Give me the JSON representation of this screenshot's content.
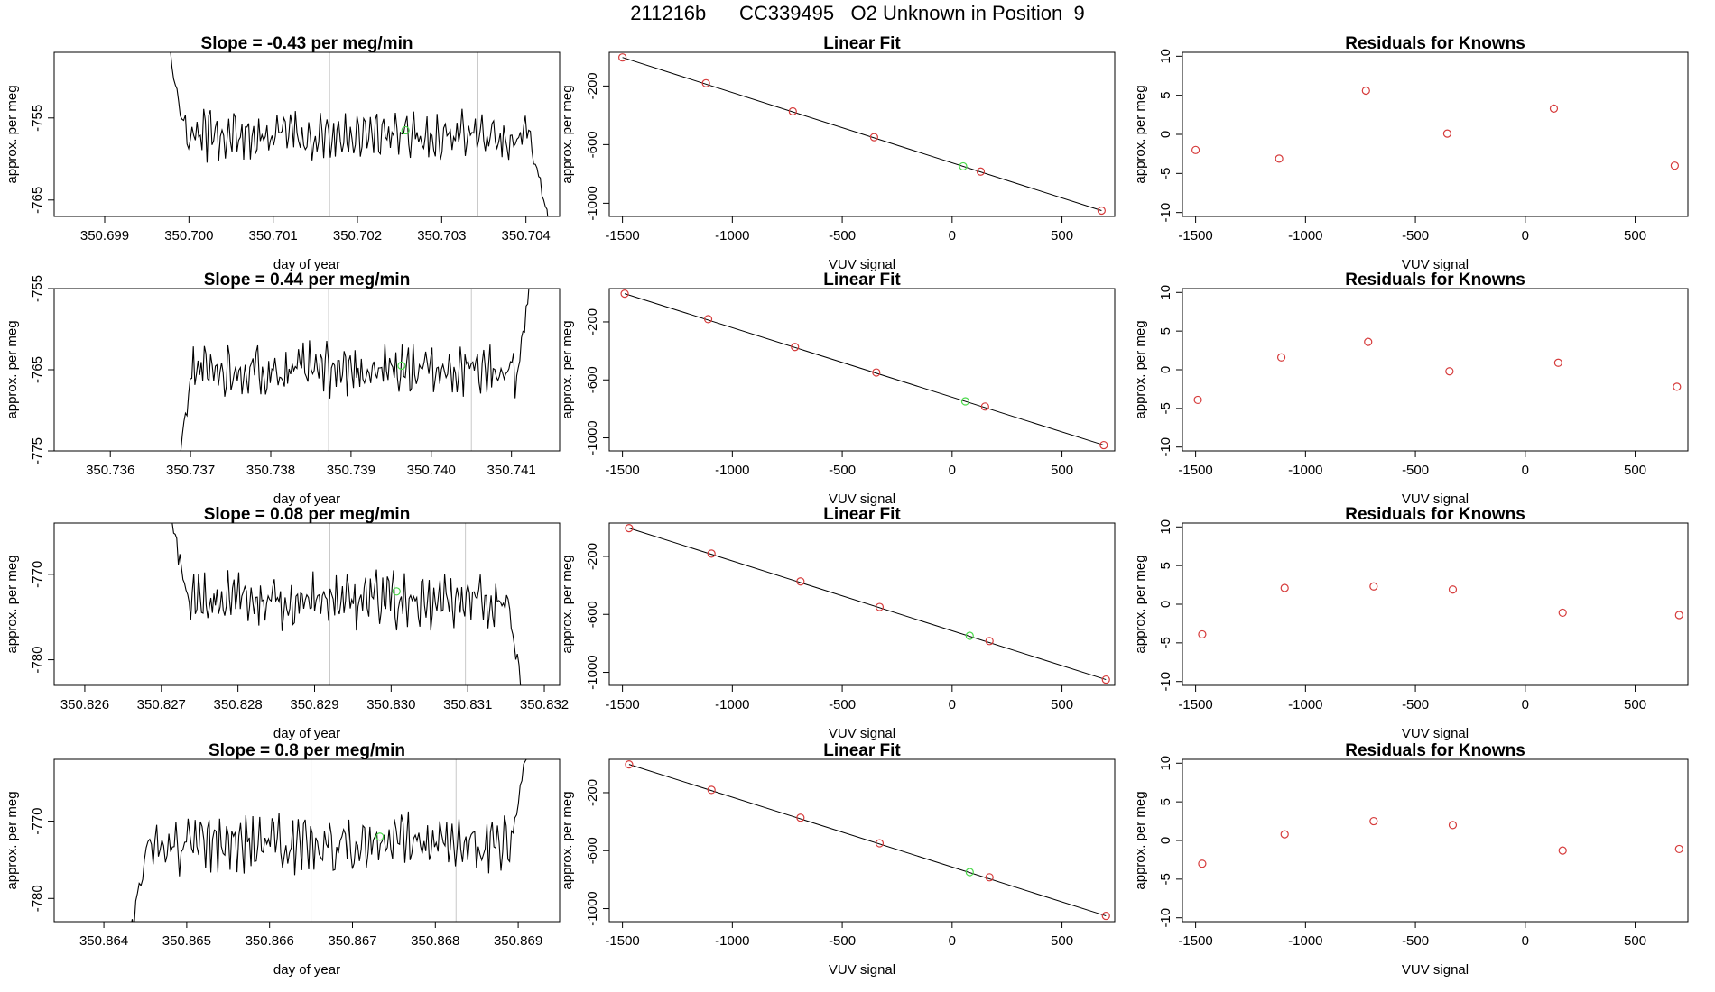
{
  "page_title": "211216b      CC339495   O2 Unknown in Position  9",
  "colors": {
    "trace": "#000000",
    "marker_red": "#d63b3b",
    "marker_green": "#4ad84a",
    "guide": "#c8c8c8"
  },
  "chart_data": [
    {
      "type": "line",
      "title": "Slope =  -0.43  per meg/min",
      "xlabel": "day of year",
      "ylabel": "approx. per meg",
      "xlim": [
        350.6984,
        350.7044
      ],
      "ylim": [
        -767,
        -747
      ],
      "xticks": [
        "350.699",
        "350.700",
        "350.701",
        "350.702",
        "350.703",
        "350.704"
      ],
      "yticks": [
        "-765",
        "-755"
      ],
      "yticks_value": [
        -765,
        -755
      ],
      "vlines": [
        350.70167,
        350.70343
      ],
      "green_point": [
        350.70257,
        -756.5
      ],
      "series_x": [
        350.69972,
        350.70427
      ],
      "base": -757,
      "start": -744,
      "end": -768,
      "noise": 2.5,
      "seed": 3
    },
    {
      "type": "scatter",
      "title": "Linear Fit",
      "xlabel": "VUV signal",
      "ylabel": "approx. per meg",
      "xlim": [
        -1560,
        740
      ],
      "ylim": [
        -1090,
        30
      ],
      "xticks": [
        "-1500",
        "-1000",
        "-500",
        "0",
        "500"
      ],
      "yticks": [
        "-1000",
        "-600",
        "-200"
      ],
      "points": [
        [
          -1500,
          -5
        ],
        [
          -1120,
          -181
        ],
        [
          -725,
          -373
        ],
        [
          -355,
          -549
        ],
        [
          130,
          -784
        ],
        [
          680,
          -1050
        ]
      ],
      "green_point": [
        50,
        -748
      ],
      "fit_line": [
        [
          -1500,
          -5
        ],
        [
          680,
          -1050
        ]
      ]
    },
    {
      "type": "scatter",
      "title": "Residuals for Knowns",
      "xlabel": "VUV signal",
      "ylabel": "approx. per meg",
      "xlim": [
        -1560,
        740
      ],
      "ylim": [
        -10.5,
        10.5
      ],
      "xticks": [
        "-1500",
        "-1000",
        "-500",
        "0",
        "500"
      ],
      "yticks": [
        "-10",
        "-5",
        "0",
        "5",
        "10"
      ],
      "points": [
        [
          -1500,
          -2
        ],
        [
          -1120,
          -3.1
        ],
        [
          -725,
          5.6
        ],
        [
          -355,
          0.1
        ],
        [
          130,
          3.3
        ],
        [
          680,
          -4
        ]
      ]
    },
    {
      "type": "line",
      "title": "Slope =  0.44  per meg/min",
      "xlabel": "day of year",
      "ylabel": "approx. per meg",
      "xlim": [
        350.7353,
        350.7416
      ],
      "ylim": [
        -775,
        -755
      ],
      "xticks": [
        "350.736",
        "350.737",
        "350.738",
        "350.739",
        "350.740",
        "350.741"
      ],
      "yticks": [
        "-775",
        "-765",
        "-755"
      ],
      "yticks_value": [
        -775,
        -765,
        -755
      ],
      "vlines": [
        350.73872,
        350.7405
      ],
      "green_point": [
        350.73963,
        -764.5
      ],
      "series_x": [
        350.7368,
        350.7413
      ],
      "base": -765,
      "start": -780,
      "end": -750,
      "noise": 2.6,
      "seed": 11
    },
    {
      "type": "scatter",
      "title": "Linear Fit",
      "xlabel": "VUV signal",
      "ylabel": "approx. per meg",
      "xlim": [
        -1560,
        740
      ],
      "ylim": [
        -1090,
        30
      ],
      "xticks": [
        "-1500",
        "-1000",
        "-500",
        "0",
        "500"
      ],
      "yticks": [
        "-1000",
        "-600",
        "-200"
      ],
      "points": [
        [
          -1490,
          -5
        ],
        [
          -1110,
          -181
        ],
        [
          -715,
          -373
        ],
        [
          -345,
          -549
        ],
        [
          150,
          -784
        ],
        [
          690,
          -1050
        ]
      ],
      "green_point": [
        60,
        -748
      ],
      "fit_line": [
        [
          -1490,
          -5
        ],
        [
          690,
          -1050
        ]
      ]
    },
    {
      "type": "scatter",
      "title": "Residuals for Knowns",
      "xlabel": "VUV signal",
      "ylabel": "approx. per meg",
      "xlim": [
        -1560,
        740
      ],
      "ylim": [
        -10.5,
        10.5
      ],
      "xticks": [
        "-1500",
        "-1000",
        "-500",
        "0",
        "500"
      ],
      "yticks": [
        "-10",
        "-5",
        "0",
        "5",
        "10"
      ],
      "points": [
        [
          -1490,
          -3.9
        ],
        [
          -1110,
          1.6
        ],
        [
          -715,
          3.6
        ],
        [
          -345,
          -0.2
        ],
        [
          150,
          0.9
        ],
        [
          690,
          -2.2
        ]
      ]
    },
    {
      "type": "line",
      "title": "Slope =  0.08  per meg/min",
      "xlabel": "day of year",
      "ylabel": "approx. per meg",
      "xlim": [
        350.8256,
        350.8322
      ],
      "ylim": [
        -783,
        -764
      ],
      "xticks": [
        "350.826",
        "350.827",
        "350.828",
        "350.829",
        "350.830",
        "350.831",
        "350.832"
      ],
      "yticks": [
        "-780",
        "-770"
      ],
      "yticks_value": [
        -780,
        -770
      ],
      "vlines": [
        350.8292,
        350.83097
      ],
      "green_point": [
        350.83007,
        -772
      ],
      "series_x": [
        350.8271,
        350.83175
      ],
      "base": -773,
      "start": -762,
      "end": -786,
      "noise": 2.6,
      "seed": 21
    },
    {
      "type": "scatter",
      "title": "Linear Fit",
      "xlabel": "VUV signal",
      "ylabel": "approx. per meg",
      "xlim": [
        -1560,
        740
      ],
      "ylim": [
        -1090,
        30
      ],
      "xticks": [
        "-1500",
        "-1000",
        "-500",
        "0",
        "500"
      ],
      "yticks": [
        "-1000",
        "-600",
        "-200"
      ],
      "points": [
        [
          -1470,
          -5
        ],
        [
          -1095,
          -181
        ],
        [
          -690,
          -373
        ],
        [
          -330,
          -549
        ],
        [
          170,
          -784
        ],
        [
          700,
          -1050
        ]
      ],
      "green_point": [
        80,
        -748
      ],
      "fit_line": [
        [
          -1470,
          -5
        ],
        [
          700,
          -1050
        ]
      ]
    },
    {
      "type": "scatter",
      "title": "Residuals for Knowns",
      "xlabel": "VUV signal",
      "ylabel": "approx. per meg",
      "xlim": [
        -1560,
        740
      ],
      "ylim": [
        -10.5,
        10.5
      ],
      "xticks": [
        "-1500",
        "-1000",
        "-500",
        "0",
        "500"
      ],
      "yticks": [
        "-10",
        "-5",
        "0",
        "5",
        "10"
      ],
      "points": [
        [
          -1470,
          -3.9
        ],
        [
          -1095,
          2.1
        ],
        [
          -690,
          2.3
        ],
        [
          -330,
          1.9
        ],
        [
          170,
          -1.1
        ],
        [
          700,
          -1.4
        ]
      ]
    },
    {
      "type": "line",
      "title": "Slope =  0.8  per meg/min",
      "xlabel": "day of year",
      "ylabel": "approx. per meg",
      "xlim": [
        350.8634,
        350.8695
      ],
      "ylim": [
        -783,
        -762
      ],
      "xticks": [
        "350.864",
        "350.865",
        "350.866",
        "350.867",
        "350.868",
        "350.869"
      ],
      "yticks": [
        "-780",
        "-770"
      ],
      "yticks_value": [
        -780,
        -770
      ],
      "vlines": [
        350.8665,
        350.86825
      ],
      "green_point": [
        350.86733,
        -772
      ],
      "series_x": [
        350.8643,
        350.86915
      ],
      "base": -773,
      "start": -786,
      "end": -758,
      "noise": 3.2,
      "seed": 33
    },
    {
      "type": "scatter",
      "title": "Linear Fit",
      "xlabel": "VUV signal",
      "ylabel": "approx. per meg",
      "xlim": [
        -1560,
        740
      ],
      "ylim": [
        -1090,
        30
      ],
      "xticks": [
        "-1500",
        "-1000",
        "-500",
        "0",
        "500"
      ],
      "yticks": [
        "-1000",
        "-600",
        "-200"
      ],
      "points": [
        [
          -1470,
          -5
        ],
        [
          -1095,
          -181
        ],
        [
          -690,
          -373
        ],
        [
          -330,
          -549
        ],
        [
          170,
          -784
        ],
        [
          700,
          -1050
        ]
      ],
      "green_point": [
        80,
        -748
      ],
      "fit_line": [
        [
          -1470,
          -5
        ],
        [
          700,
          -1050
        ]
      ]
    },
    {
      "type": "scatter",
      "title": "Residuals for Knowns",
      "xlabel": "VUV signal",
      "ylabel": "approx. per meg",
      "xlim": [
        -1560,
        740
      ],
      "ylim": [
        -10.5,
        10.5
      ],
      "xticks": [
        "-1500",
        "-1000",
        "-500",
        "0",
        "500"
      ],
      "yticks": [
        "-10",
        "-5",
        "0",
        "5",
        "10"
      ],
      "points": [
        [
          -1470,
          -3
        ],
        [
          -1095,
          0.8
        ],
        [
          -690,
          2.5
        ],
        [
          -330,
          2
        ],
        [
          170,
          -1.3
        ],
        [
          700,
          -1.1
        ]
      ]
    }
  ]
}
